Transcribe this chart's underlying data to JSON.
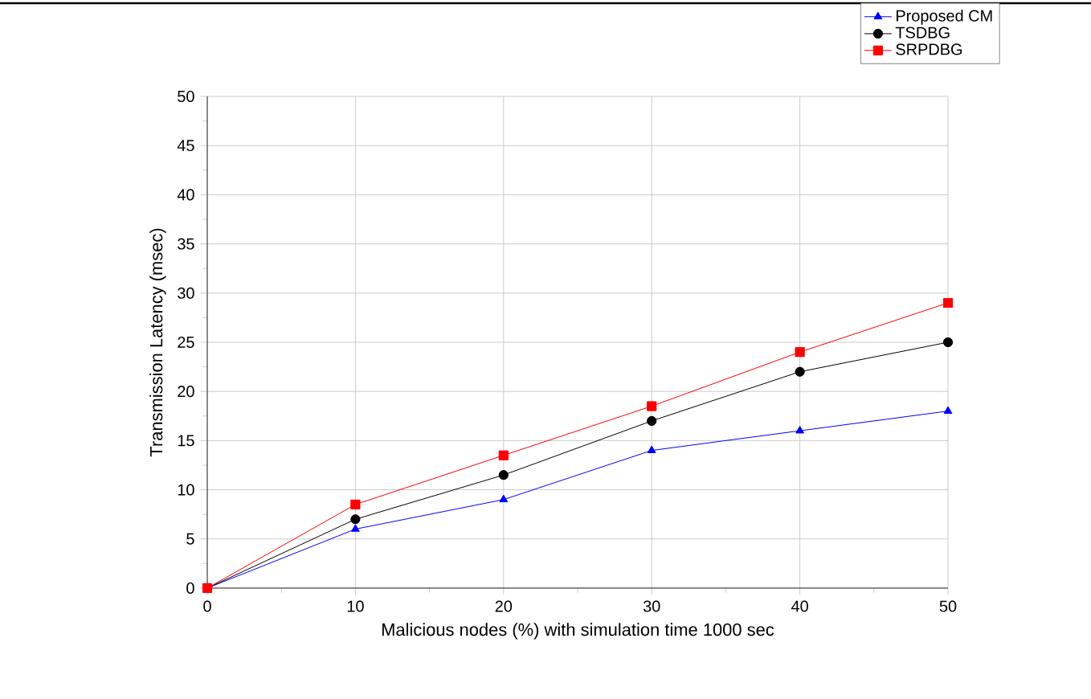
{
  "chart_data": {
    "type": "line",
    "xlabel": "Malicious nodes (%) with simulation time 1000 sec",
    "ylabel": "Transmission Latency (msec)",
    "x": [
      0,
      10,
      20,
      30,
      40,
      50
    ],
    "series": [
      {
        "name": "Proposed CM",
        "color": "#0000ff",
        "marker": "triangle",
        "values": [
          0,
          6,
          9,
          14,
          16,
          18
        ]
      },
      {
        "name": "TSDBG",
        "color": "#000000",
        "marker": "circle",
        "values": [
          0,
          7,
          11.5,
          17,
          22,
          25
        ]
      },
      {
        "name": "SRPDBG",
        "color": "#ff0000",
        "marker": "square",
        "values": [
          0,
          8.5,
          13.5,
          18.5,
          24,
          29
        ]
      }
    ],
    "xlim": [
      0,
      50
    ],
    "ylim": [
      0,
      50
    ],
    "xticks": [
      0,
      10,
      20,
      30,
      40,
      50
    ],
    "yticks": [
      0,
      5,
      10,
      15,
      20,
      25,
      30,
      35,
      40,
      45,
      50
    ],
    "grid": true,
    "legend": "top right",
    "line_style": "solid"
  }
}
